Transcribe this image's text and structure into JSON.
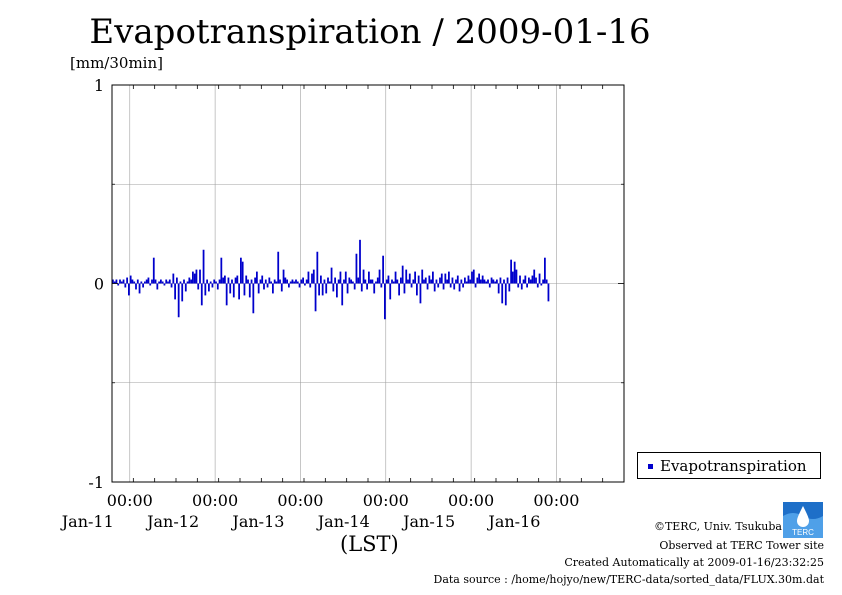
{
  "title": "Evapotranspiration / 2009-01-16",
  "unit_label": "[mm/30min]",
  "x_axis_title": "(LST)",
  "legend": {
    "label": "Evapotranspiration",
    "color": "#0000cc"
  },
  "logo": {
    "text": "TERC",
    "icon": "terc-logo-icon"
  },
  "footer": {
    "copyright": "©TERC, Univ. Tsukuba",
    "observed": "Observed at TERC Tower site",
    "created": "Created Automatically at 2009-01-16/23:32:25",
    "source": "Data source : /home/hojyo/new/TERC-data/sorted_data/FLUX.30m.dat"
  },
  "chart_data": {
    "type": "bar",
    "series": [
      {
        "name": "Evapotranspiration",
        "color": "#0000cc",
        "start": "2009-01-10T19:00",
        "interval_minutes": 30,
        "values": [
          0.02,
          0.01,
          0.02,
          -0.01,
          0.02,
          0.01,
          0.02,
          -0.02,
          0.03,
          -0.06,
          0.04,
          0.02,
          0.01,
          -0.03,
          0.02,
          -0.05,
          0.01,
          -0.02,
          0.01,
          0.02,
          0.03,
          -0.01,
          0.02,
          0.13,
          0.02,
          -0.03,
          0.01,
          0.02,
          0.01,
          -0.01,
          0.02,
          0.01,
          0.02,
          -0.02,
          0.05,
          -0.08,
          0.03,
          -0.17,
          0.01,
          -0.09,
          0.02,
          -0.04,
          0.01,
          0.03,
          0.02,
          0.06,
          0.05,
          0.07,
          -0.03,
          0.07,
          -0.11,
          0.17,
          -0.06,
          0.02,
          -0.04,
          0.01,
          -0.02,
          0.02,
          0.01,
          -0.03,
          0.02,
          0.13,
          0.03,
          0.04,
          -0.11,
          0.03,
          -0.05,
          0.02,
          -0.07,
          0.03,
          0.04,
          -0.08,
          0.13,
          0.11,
          -0.06,
          0.04,
          0.02,
          -0.07,
          0.02,
          -0.15,
          0.03,
          0.06,
          -0.05,
          0.02,
          0.04,
          -0.03,
          0.02,
          -0.02,
          0.03,
          0.01,
          -0.05,
          0.02,
          0.01,
          0.16,
          0.02,
          -0.04,
          0.07,
          0.03,
          0.02,
          -0.02,
          0.01,
          0.02,
          0.01,
          0.02,
          0.01,
          -0.02,
          0.02,
          0.03,
          -0.01,
          0.02,
          0.06,
          -0.02,
          0.05,
          0.07,
          -0.14,
          0.16,
          -0.06,
          0.04,
          -0.06,
          0.02,
          -0.05,
          0.03,
          0.01,
          0.08,
          -0.04,
          0.03,
          -0.07,
          0.02,
          0.06,
          -0.11,
          0.02,
          0.06,
          -0.05,
          0.03,
          0.02,
          0.01,
          -0.03,
          0.15,
          0.03,
          0.22,
          -0.04,
          0.07,
          0.02,
          -0.03,
          0.06,
          0.02,
          0.02,
          -0.05,
          0.01,
          0.03,
          0.07,
          -0.02,
          0.14,
          -0.18,
          0.02,
          0.04,
          -0.08,
          0.02,
          0.01,
          0.06,
          0.02,
          -0.06,
          0.03,
          0.09,
          -0.05,
          0.07,
          0.02,
          0.05,
          -0.02,
          0.02,
          0.06,
          -0.06,
          0.04,
          -0.1,
          0.07,
          0.02,
          0.03,
          -0.03,
          0.04,
          0.02,
          0.06,
          -0.04,
          0.02,
          -0.02,
          0.03,
          0.05,
          -0.03,
          0.05,
          0.02,
          0.06,
          -0.02,
          0.03,
          -0.03,
          0.02,
          0.04,
          -0.04,
          0.02,
          -0.02,
          0.03,
          0.01,
          0.04,
          0.02,
          0.06,
          0.07,
          -0.02,
          0.03,
          0.05,
          0.02,
          0.04,
          0.02,
          0.01,
          0.02,
          -0.02,
          0.03,
          0.02,
          0.01,
          0.02,
          -0.05,
          0.03,
          -0.1,
          0.02,
          -0.11,
          0.03,
          -0.04,
          0.12,
          0.06,
          0.11,
          0.07,
          -0.02,
          0.04,
          -0.03,
          0.02,
          0.04,
          -0.02,
          0.03,
          0.02,
          0.04,
          0.07,
          0.03,
          -0.02,
          0.05,
          -0.01,
          0.02,
          0.13,
          0.02,
          -0.09
        ]
      }
    ],
    "ylim": [
      -1,
      1
    ],
    "yticks": [
      -1,
      0,
      1
    ],
    "ylabel": "[mm/30min]",
    "xlim": [
      "2009-01-10T19:00",
      "2009-01-16T19:00"
    ],
    "xticks": [
      {
        "time": "2009-01-11T00:00",
        "hour_label": "00:00",
        "date_label": "Jan-11"
      },
      {
        "time": "2009-01-12T00:00",
        "hour_label": "00:00",
        "date_label": "Jan-12"
      },
      {
        "time": "2009-01-13T00:00",
        "hour_label": "00:00",
        "date_label": "Jan-13"
      },
      {
        "time": "2009-01-14T00:00",
        "hour_label": "00:00",
        "date_label": "Jan-14"
      },
      {
        "time": "2009-01-15T00:00",
        "hour_label": "00:00",
        "date_label": "Jan-15"
      },
      {
        "time": "2009-01-16T00:00",
        "hour_label": "00:00",
        "date_label": "Jan-16"
      }
    ],
    "xlabel": "(LST)",
    "grid": true,
    "legend_position": "right"
  }
}
